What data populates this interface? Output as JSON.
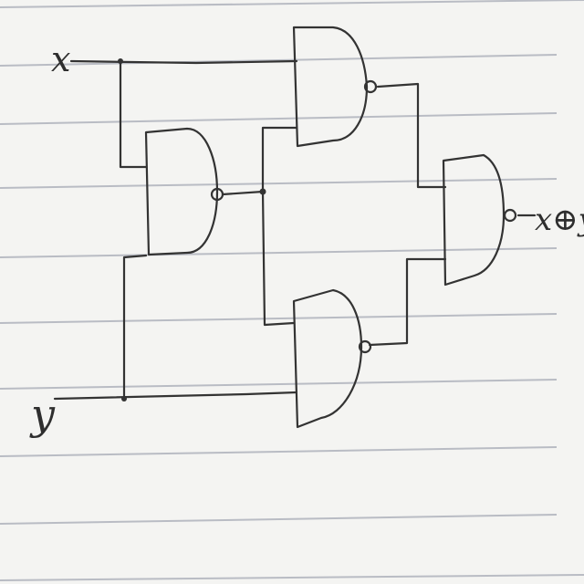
{
  "diagram": {
    "input_x_label": "x",
    "input_y_label": "y",
    "output_label": "x⊕y",
    "gates": [
      {
        "id": "nand-1",
        "type": "NAND",
        "inputs": [
          "x",
          "y"
        ]
      },
      {
        "id": "nand-2",
        "type": "NAND",
        "inputs": [
          "x",
          "nand-1"
        ]
      },
      {
        "id": "nand-3",
        "type": "NAND",
        "inputs": [
          "nand-1",
          "y"
        ]
      },
      {
        "id": "nand-4",
        "type": "NAND",
        "inputs": [
          "nand-2",
          "nand-3"
        ]
      }
    ],
    "paper": {
      "background": "#f4f4f2",
      "rule_color": "#b9bcc4",
      "ink_color": "#333333"
    }
  }
}
